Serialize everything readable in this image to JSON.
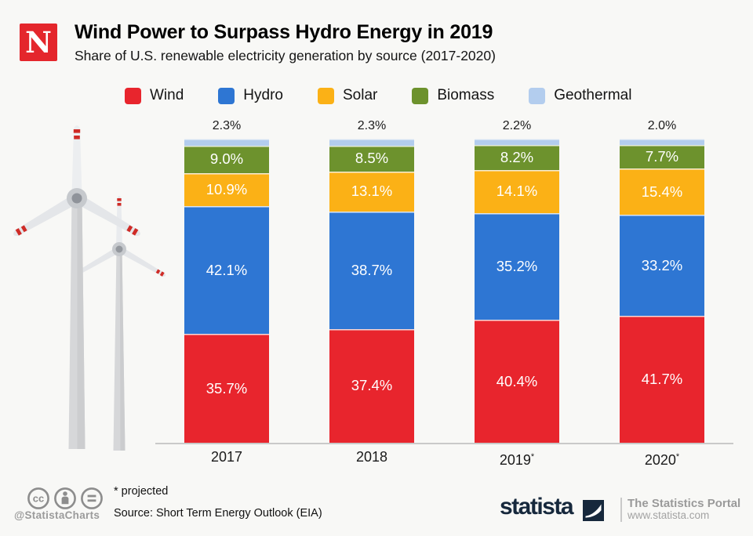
{
  "header": {
    "publisher_logo_letter": "N",
    "title": "Wind Power to Surpass Hydro Energy in 2019",
    "subtitle": "Share of U.S. renewable electricity generation by source (2017-2020)"
  },
  "legend": [
    {
      "label": "Wind",
      "color": "#e8252d"
    },
    {
      "label": "Hydro",
      "color": "#2e76d3"
    },
    {
      "label": "Solar",
      "color": "#fbb116"
    },
    {
      "label": "Biomass",
      "color": "#6d922d"
    },
    {
      "label": "Geothermal",
      "color": "#b3cdee"
    }
  ],
  "chart_data": {
    "type": "bar",
    "variant": "stacked-100-percent",
    "title": "Wind Power to Surpass Hydro Energy in 2019",
    "subtitle": "Share of U.S. renewable electricity generation by source (2017-2020)",
    "unit": "%",
    "categories": [
      "2017",
      "2018",
      "2019",
      "2020"
    ],
    "projected": [
      false,
      false,
      true,
      true
    ],
    "series": [
      {
        "name": "Wind",
        "color": "#e8252d",
        "labels_inside": true,
        "values": [
          35.7,
          37.4,
          40.4,
          41.7
        ]
      },
      {
        "name": "Hydro",
        "color": "#2e76d3",
        "labels_inside": true,
        "values": [
          42.1,
          38.7,
          35.2,
          33.2
        ]
      },
      {
        "name": "Solar",
        "color": "#fbb116",
        "labels_inside": true,
        "values": [
          10.9,
          13.1,
          14.1,
          15.4
        ]
      },
      {
        "name": "Biomass",
        "color": "#6d922d",
        "labels_inside": true,
        "values": [
          9.0,
          8.5,
          8.2,
          7.7
        ]
      },
      {
        "name": "Geothermal",
        "color": "#b3cdee",
        "labels_inside": false,
        "values": [
          2.3,
          2.3,
          2.2,
          2.0
        ]
      }
    ],
    "top_labels": [
      "2.3%",
      "2.3%",
      "2.2%",
      "2.0%"
    ],
    "ylim": [
      0,
      100
    ],
    "grid": false,
    "legend_position": "top"
  },
  "footer": {
    "license_icons": [
      "cc-icon",
      "attribution-icon",
      "equals-icon"
    ],
    "handle": "@StatistaCharts",
    "note": "* projected",
    "source": "Source: Short Term Energy Outlook (EIA)",
    "brand": "statista",
    "portal": "The Statistics Portal",
    "website": "www.statista.com"
  },
  "colors": {
    "background": "#f8f8f6",
    "axis_line": "#c9c9c9",
    "brand_navy": "#16283c",
    "publisher_red": "#e4262c"
  }
}
